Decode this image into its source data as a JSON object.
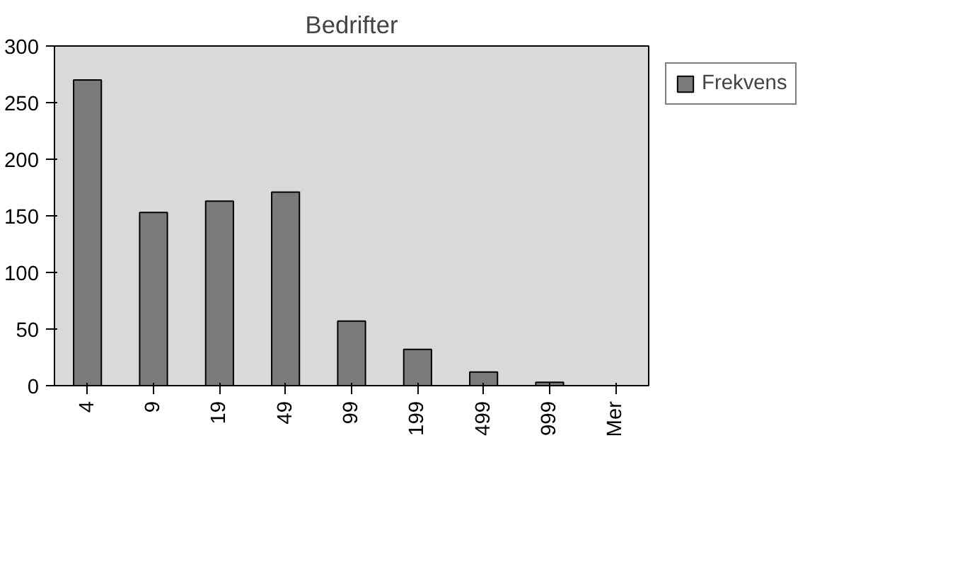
{
  "chart_data": {
    "type": "bar",
    "title": "Bedrifter",
    "categories": [
      "4",
      "9",
      "19",
      "49",
      "99",
      "199",
      "499",
      "999",
      "Mer"
    ],
    "series": [
      {
        "name": "Frekvens",
        "color": "#7a7a7a",
        "values": [
          270,
          153,
          163,
          171,
          57,
          32,
          12,
          3,
          0
        ]
      }
    ],
    "ylim": [
      0,
      300
    ],
    "yticks": [
      0,
      50,
      100,
      150,
      200,
      250,
      300
    ],
    "grid": false,
    "legend": "right"
  }
}
